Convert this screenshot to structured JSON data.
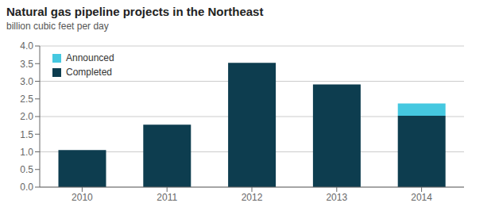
{
  "chart_data": {
    "type": "bar",
    "title": "Natural gas pipeline projects in the Northeast",
    "subtitle": "billion cubic feet per day",
    "categories": [
      "2010",
      "2011",
      "2012",
      "2013",
      "2014"
    ],
    "series": [
      {
        "name": "Completed",
        "color": "#0d3d4f",
        "values": [
          1.05,
          1.77,
          3.52,
          2.91,
          2.02
        ]
      },
      {
        "name": "Announced",
        "color": "#45c8e0",
        "values": [
          0.0,
          0.0,
          0.0,
          0.0,
          0.35
        ]
      }
    ],
    "stacked": true,
    "ylim": [
      0,
      4.0
    ],
    "yticks": [
      {
        "value": 0.0,
        "label": "0.0"
      },
      0.5,
      {
        "value": 1.0,
        "label": "1.0"
      },
      1.5,
      {
        "value": 2.0,
        "label": "2.0"
      },
      2.5,
      {
        "value": 3.0,
        "label": "3.0"
      },
      3.5,
      {
        "value": 4.0,
        "label": "4.0"
      }
    ],
    "grid": true,
    "legend": "upper left"
  }
}
